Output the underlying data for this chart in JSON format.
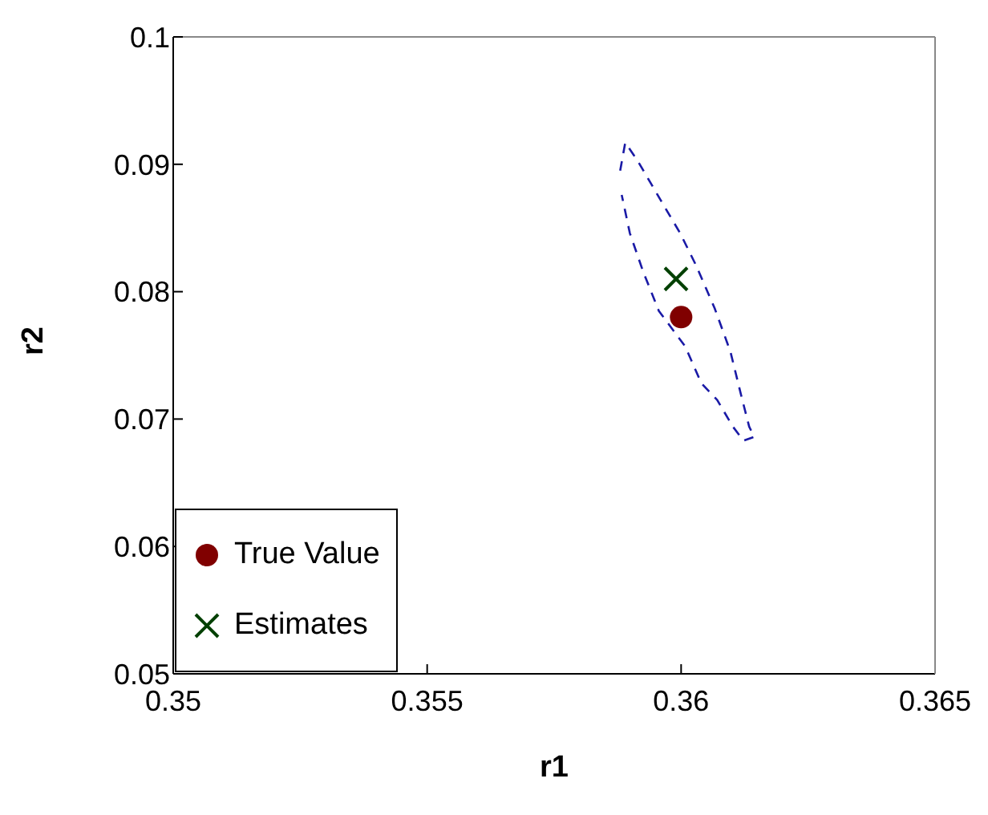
{
  "chart_data": {
    "type": "scatter",
    "xlabel": "r1",
    "ylabel": "r2",
    "xlim": [
      0.35,
      0.365
    ],
    "xticks": [
      0.35,
      0.355,
      0.36,
      0.365
    ],
    "ylim": [
      0.05,
      0.1
    ],
    "yticks": [
      0.05,
      0.06,
      0.07,
      0.08,
      0.09,
      0.1
    ],
    "grid": false,
    "legend": "bottom left",
    "series": [
      {
        "type": "line",
        "color": "#1a1aa6",
        "line_style": "dashed",
        "marker": "none",
        "x": [
          0.3588,
          0.3589,
          0.35914,
          0.35961,
          0.35998,
          0.36029,
          0.36066,
          0.36097,
          0.36118,
          0.36134,
          0.36144,
          0.36123,
          0.36102,
          0.36071,
          0.3604,
          0.36008,
          0.35956,
          0.35925,
          0.35899,
          0.35883
        ],
        "values": [
          0.0895,
          0.0917,
          0.0903,
          0.0871,
          0.0846,
          0.0821,
          0.0787,
          0.0753,
          0.0719,
          0.0694,
          0.0686,
          0.0683,
          0.0694,
          0.0715,
          0.0728,
          0.0757,
          0.0785,
          0.0816,
          0.0846,
          0.0876
        ]
      },
      {
        "type": "scatter",
        "name": "True Value",
        "color": "#800000",
        "marker": "circle",
        "x": [
          0.36
        ],
        "values": [
          0.078
        ]
      },
      {
        "type": "scatter",
        "name": "Estimates",
        "color": "#004000",
        "marker": "cross",
        "x": [
          0.3599
        ],
        "values": [
          0.081
        ]
      }
    ]
  }
}
